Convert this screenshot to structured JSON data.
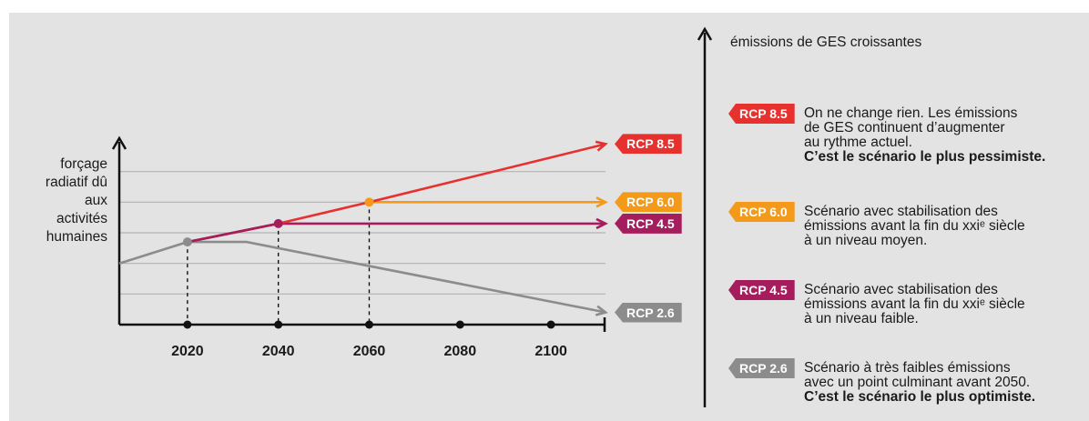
{
  "chart_data": {
    "type": "line",
    "ylabel_lines": [
      "forçage",
      "radiatif dû",
      "aux",
      "activités",
      "humaines"
    ],
    "xlabel": "",
    "x_ticks": [
      2020,
      2040,
      2060,
      2080,
      2100
    ],
    "xlim": [
      2005,
      2112
    ],
    "ylim": [
      0,
      6
    ],
    "series": [
      {
        "name": "RCP 8.5",
        "color": "#e6312f",
        "points": [
          [
            2005,
            2
          ],
          [
            2020,
            2.7
          ],
          [
            2040,
            3.3
          ],
          [
            2060,
            4
          ],
          [
            2112,
            5.9
          ]
        ]
      },
      {
        "name": "RCP 6.0",
        "color": "#f39a1b",
        "points": [
          [
            2005,
            2
          ],
          [
            2020,
            2.7
          ],
          [
            2040,
            3.3
          ],
          [
            2060,
            4
          ],
          [
            2112,
            4
          ]
        ]
      },
      {
        "name": "RCP 4.5",
        "color": "#a51d5c",
        "points": [
          [
            2005,
            2
          ],
          [
            2020,
            2.7
          ],
          [
            2040,
            3.3
          ],
          [
            2112,
            3.3
          ]
        ]
      },
      {
        "name": "RCP 2.6",
        "color": "#8c8c8c",
        "points": [
          [
            2005,
            2
          ],
          [
            2020,
            2.7
          ],
          [
            2033,
            2.7
          ],
          [
            2112,
            0.4
          ]
        ]
      }
    ],
    "markers": [
      {
        "x": 2020,
        "y": 2.7,
        "color": "#8c8c8c"
      },
      {
        "x": 2040,
        "y": 3.3,
        "color": "#a51d5c"
      },
      {
        "x": 2060,
        "y": 4,
        "color": "#f39a1b"
      }
    ],
    "dashed_drops": [
      2020,
      2040,
      2060
    ],
    "grid": true
  },
  "right_axis_title": "émissions de GES croissantes",
  "legend": [
    {
      "badge": "RCP 8.5",
      "color": "#e6312f",
      "lines": [
        "On ne change rien. Les émissions",
        "de GES continuent d’augmenter",
        "au rythme actuel."
      ],
      "bold": "C’est le scénario le plus pessimiste."
    },
    {
      "badge": "RCP 6.0",
      "color": "#f39a1b",
      "lines": [
        "Scénario avec stabilisation des",
        "émissions avant la fin du xxiᵉ siècle",
        "à un niveau moyen."
      ],
      "bold": ""
    },
    {
      "badge": "RCP 4.5",
      "color": "#a51d5c",
      "lines": [
        "Scénario avec stabilisation des",
        "émissions avant la fin du xxiᵉ siècle",
        "à un niveau faible."
      ],
      "bold": ""
    },
    {
      "badge": "RCP 2.6",
      "color": "#8c8c8c",
      "lines": [
        "Scénario à très faibles émissions",
        "avec un point culminant avant 2050."
      ],
      "bold": "C’est le scénario le plus optimiste."
    }
  ]
}
